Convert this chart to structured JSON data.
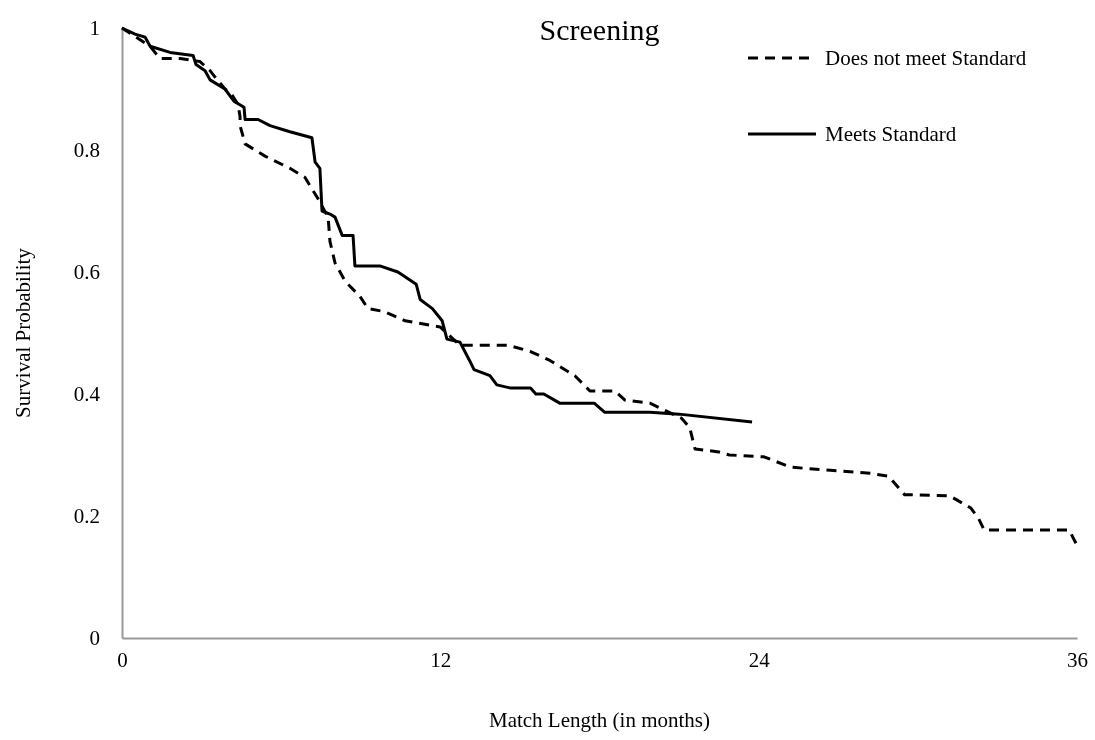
{
  "chart_data": {
    "type": "line",
    "title": "Screening",
    "xlabel": "Match Length (in months)",
    "ylabel": "Survival Probability",
    "xlim": [
      0,
      36
    ],
    "xticks": [
      0,
      12,
      24,
      36
    ],
    "ylim": [
      0,
      1
    ],
    "yticks": [
      0,
      0.2,
      0.4,
      0.6,
      0.8,
      1
    ],
    "grid": false,
    "legend": "top right",
    "marker": "none",
    "series": [
      {
        "name": "Does not meet Standard",
        "color": "#000000",
        "line_style": "dashed",
        "x": [
          0,
          1.06,
          1.43,
          2.19,
          2.94,
          3.32,
          3.5,
          3.88,
          4.15,
          4.37,
          4.45,
          4.45,
          4.64,
          5.39,
          6.33,
          6.9,
          7.39,
          7.77,
          7.84,
          8.03,
          8.41,
          8.97,
          9.27,
          9.9,
          10.67,
          11.99,
          12.74,
          14.55,
          15.38,
          16.13,
          17.07,
          17.64,
          18.58,
          18.96,
          19.9,
          21.1,
          21.4,
          21.6,
          22.5,
          22.9,
          24.2,
          25.2,
          26.7,
          28.2,
          28.9,
          29.5,
          31.2,
          32,
          32.3,
          32.5,
          35.7,
          36
        ],
        "values": [
          1,
          0.97,
          0.95,
          0.95,
          0.945,
          0.93,
          0.92,
          0.9,
          0.89,
          0.875,
          0.855,
          0.84,
          0.81,
          0.79,
          0.77,
          0.755,
          0.72,
          0.69,
          0.65,
          0.615,
          0.585,
          0.56,
          0.54,
          0.535,
          0.52,
          0.51,
          0.48,
          0.48,
          0.47,
          0.455,
          0.43,
          0.405,
          0.405,
          0.39,
          0.385,
          0.36,
          0.345,
          0.31,
          0.305,
          0.3,
          0.297,
          0.28,
          0.275,
          0.27,
          0.265,
          0.235,
          0.233,
          0.213,
          0.195,
          0.177,
          0.177,
          0.152
        ]
      },
      {
        "name": "Meets Standard",
        "color": "#000000",
        "line_style": "solid",
        "x": [
          0,
          0.49,
          0.87,
          1.06,
          1.81,
          2.68,
          2.79,
          3.13,
          3.32,
          3.88,
          4.22,
          4.6,
          4.64,
          5.13,
          5.58,
          6.33,
          7.16,
          7.28,
          7.46,
          7.54,
          7.84,
          8.03,
          8.3,
          8.71,
          8.78,
          9.16,
          9.72,
          10.4,
          11.09,
          11.24,
          11.7,
          12.07,
          12.25,
          12.74,
          13.1,
          13.27,
          13.87,
          14.13,
          14.62,
          15.4,
          15.6,
          15.9,
          16.5,
          16.7,
          17.8,
          18.2,
          19.9,
          21,
          23.75
        ],
        "values": [
          1,
          0.99,
          0.985,
          0.97,
          0.96,
          0.955,
          0.94,
          0.93,
          0.915,
          0.9,
          0.88,
          0.87,
          0.85,
          0.85,
          0.84,
          0.83,
          0.82,
          0.78,
          0.77,
          0.7,
          0.695,
          0.69,
          0.66,
          0.66,
          0.61,
          0.61,
          0.61,
          0.6,
          0.58,
          0.555,
          0.54,
          0.52,
          0.49,
          0.485,
          0.455,
          0.44,
          0.43,
          0.415,
          0.41,
          0.41,
          0.4,
          0.4,
          0.385,
          0.385,
          0.385,
          0.37,
          0.37,
          0.367,
          0.354
        ]
      }
    ]
  }
}
